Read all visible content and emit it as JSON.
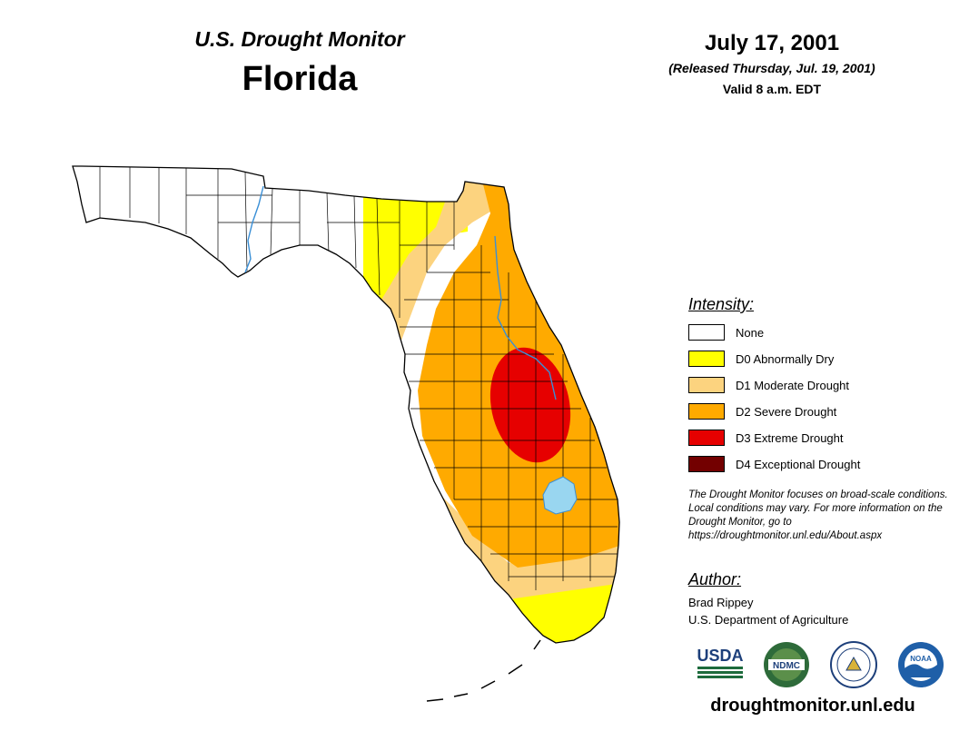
{
  "header": {
    "subtitle": "U.S. Drought Monitor",
    "state": "Florida",
    "date": "July 17, 2001",
    "released": "(Released Thursday, Jul. 19, 2001)",
    "valid": "Valid 8 a.m. EDT"
  },
  "legend": {
    "heading": "Intensity:",
    "items": [
      {
        "label": "None",
        "color": "#ffffff"
      },
      {
        "label": "D0 Abnormally Dry",
        "color": "#ffff00"
      },
      {
        "label": "D1 Moderate Drought",
        "color": "#fcd37f"
      },
      {
        "label": "D2 Severe Drought",
        "color": "#ffaa00"
      },
      {
        "label": "D3 Extreme Drought",
        "color": "#e60000"
      },
      {
        "label": "D4 Exceptional Drought",
        "color": "#730000"
      }
    ]
  },
  "note": "The Drought Monitor focuses on broad-scale conditions. Local conditions may vary. For more information on the Drought Monitor, go to https://droughtmonitor.unl.edu/About.aspx",
  "author": {
    "heading": "Author:",
    "name": "Brad Rippey",
    "organization": "U.S. Department of Agriculture"
  },
  "logos": [
    {
      "name": "usda-logo",
      "text": "USDA"
    },
    {
      "name": "ndmc-logo",
      "text": "NDMC"
    },
    {
      "name": "doc-logo",
      "text": ""
    },
    {
      "name": "noaa-logo",
      "text": "NOAA"
    }
  ],
  "url": "droughtmonitor.unl.edu",
  "map_colors": {
    "water": "#99d6f0",
    "river": "#3a8fd6",
    "county_line": "#000000"
  }
}
